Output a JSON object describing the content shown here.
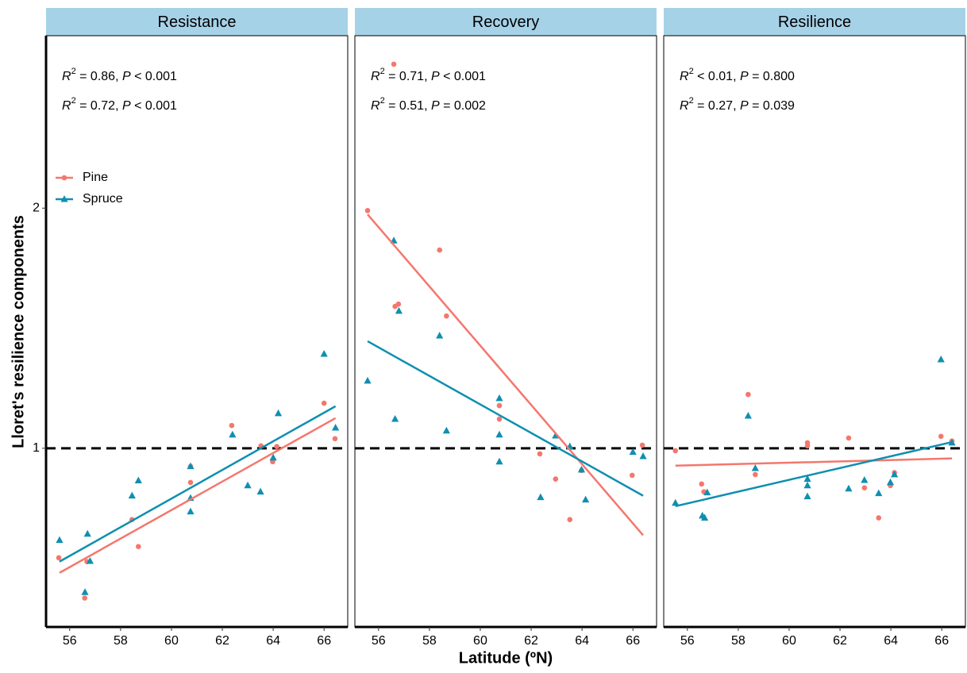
{
  "chart_data": {
    "type": "scatter",
    "y_label": "Lloret's resilience components",
    "x_label": "Latitude (ºN)",
    "log_y": true,
    "ylim": [
      0.597,
      3.29
    ],
    "yticks": [
      1,
      2
    ],
    "xlim": [
      55.07,
      66.93
    ],
    "xticks": [
      56,
      58,
      60,
      62,
      64,
      66
    ],
    "hline": 1,
    "legend": "top-left",
    "series": [
      {
        "name": "Pine",
        "color": "#f4776d",
        "marker": "circle"
      },
      {
        "name": "Spruce",
        "color": "#0f8fb0",
        "marker": "triangle"
      }
    ],
    "facets": [
      {
        "title": "Resistance",
        "annotations": [
          [
            "R",
            "2",
            " = 0.86, ",
            "P",
            " < 0.001"
          ],
          [
            "R",
            "2",
            " = 0.72, ",
            "P",
            " < 0.001"
          ]
        ],
        "series": [
          {
            "x": [
              55.57,
              56.59,
              56.68,
              58.45,
              58.7,
              60.75,
              60.75,
              62.37,
              63.52,
              63.98,
              64.14,
              66.0,
              66.43
            ],
            "values": [
              0.729,
              0.649,
              0.721,
              0.814,
              0.753,
              0.906,
              0.949,
              1.068,
              1.007,
              0.962,
              1.005,
              1.139,
              1.028
            ]
          },
          {
            "x": [
              55.6,
              56.6,
              56.7,
              56.8,
              58.45,
              58.7,
              60.75,
              60.75,
              60.75,
              62.4,
              63.0,
              63.5,
              64.0,
              64.2,
              66.0,
              66.45
            ],
            "values": [
              0.767,
              0.66,
              0.781,
              0.722,
              0.872,
              0.911,
              0.949,
              0.866,
              0.833,
              1.04,
              0.898,
              0.882,
              0.973,
              1.106,
              1.313,
              1.061
            ]
          }
        ],
        "fits": [
          {
            "x": [
              55.6,
              66.45
            ],
            "values": [
              0.698,
              1.091
            ]
          },
          {
            "x": [
              55.6,
              66.45
            ],
            "values": [
              0.721,
              1.129
            ]
          }
        ]
      },
      {
        "title": "Recovery",
        "annotations": [
          [
            "R",
            "2",
            " = 0.71, ",
            "P",
            " < 0.001"
          ],
          [
            "R",
            "2",
            " = 0.51, ",
            "P",
            " = 0.002"
          ]
        ],
        "series": [
          {
            "x": [
              55.57,
              56.6,
              56.65,
              56.78,
              58.4,
              58.67,
              60.75,
              60.75,
              62.34,
              62.96,
              63.52,
              63.98,
              65.97,
              66.37
            ],
            "values": [
              1.986,
              3.03,
              1.506,
              1.516,
              1.772,
              1.465,
              1.131,
              1.088,
              0.984,
              0.915,
              0.814,
              0.938,
              0.925,
              1.009
            ]
          },
          {
            "x": [
              55.57,
              56.6,
              56.65,
              56.8,
              58.4,
              58.67,
              60.75,
              60.75,
              60.75,
              62.37,
              62.96,
              63.52,
              63.98,
              64.14,
              66.0,
              66.4
            ],
            "values": [
              1.215,
              1.821,
              1.088,
              1.486,
              1.384,
              1.052,
              1.155,
              1.04,
              0.962,
              0.868,
              1.037,
              1.005,
              0.94,
              0.862,
              0.989,
              0.977
            ]
          }
        ],
        "fits": [
          {
            "x": [
              55.57,
              66.4
            ],
            "values": [
              1.964,
              0.778
            ]
          },
          {
            "x": [
              55.57,
              66.4
            ],
            "values": [
              1.362,
              0.872
            ]
          }
        ]
      },
      {
        "title": "Resilience",
        "annotations": [
          [
            "R",
            "2",
            " < 0.01, ",
            "P",
            " = 0.800"
          ],
          [
            "R",
            "2",
            " = 0.27, ",
            "P",
            " = 0.039"
          ]
        ],
        "series": [
          {
            "x": [
              55.53,
              56.56,
              56.65,
              58.39,
              58.67,
              60.72,
              60.72,
              62.34,
              62.96,
              63.52,
              63.98,
              64.14,
              65.97,
              66.4
            ],
            "values": [
              0.993,
              0.902,
              0.882,
              1.168,
              0.927,
              1.016,
              1.007,
              1.03,
              0.892,
              0.818,
              0.898,
              0.932,
              1.035,
              1.021
            ]
          },
          {
            "x": [
              55.53,
              56.59,
              56.68,
              56.78,
              58.39,
              58.67,
              60.72,
              60.72,
              60.72,
              62.34,
              62.96,
              63.52,
              63.98,
              64.14,
              65.97,
              66.4
            ],
            "values": [
              0.854,
              0.823,
              0.818,
              0.88,
              1.098,
              0.944,
              0.915,
              0.898,
              0.87,
              0.89,
              0.912,
              0.878,
              0.906,
              0.927,
              1.292,
              1.016
            ]
          }
        ],
        "fits": [
          {
            "x": [
              55.53,
              66.4
            ],
            "values": [
              0.951,
              0.971
            ]
          },
          {
            "x": [
              55.53,
              66.4
            ],
            "values": [
              0.846,
              1.018
            ]
          }
        ]
      }
    ]
  }
}
